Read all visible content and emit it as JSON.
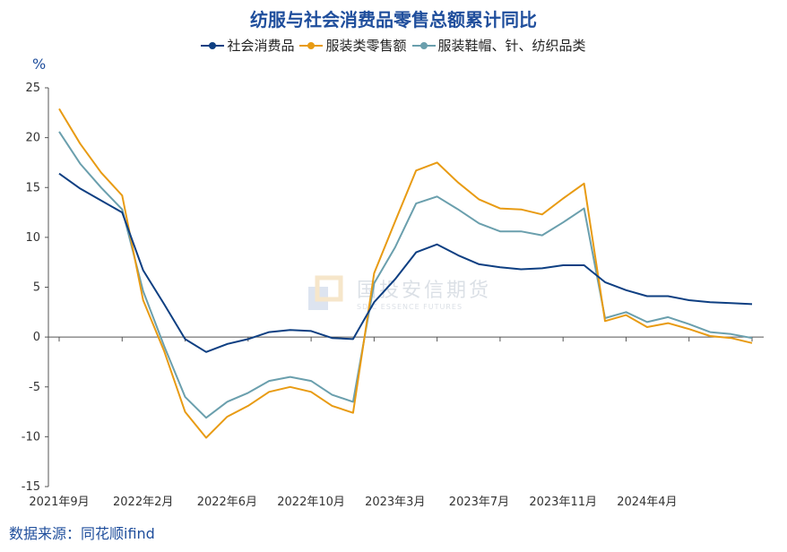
{
  "title": "纺服与社会消费品零售总额累计同比",
  "y_unit": "%",
  "source": "数据来源：同花顺ifind",
  "watermark": {
    "text_cn": "国投安信期货",
    "text_en": "SDIC ESSENCE FUTURES"
  },
  "chart_data": {
    "type": "line",
    "title": "纺服与社会消费品零售总额累计同比",
    "xlabel": "",
    "ylabel": "%",
    "ylim": [
      -15,
      25
    ],
    "yticks": [
      25,
      20,
      15,
      10,
      5,
      0,
      -5,
      -10,
      -15
    ],
    "grid": false,
    "legend_position": "top-center",
    "x": [
      "2021年9月",
      "2021年10月",
      "2021年11月",
      "2021年12月",
      "2022年2月",
      "2022年3月",
      "2022年4月",
      "2022年5月",
      "2022年6月",
      "2022年7月",
      "2022年8月",
      "2022年9月",
      "2022年10月",
      "2022年11月",
      "2022年12月",
      "2023年2月",
      "2023年3月",
      "2023年4月",
      "2023年5月",
      "2023年6月",
      "2023年7月",
      "2023年8月",
      "2023年9月",
      "2023年10月",
      "2023年11月",
      "2023年12月",
      "2024年2月",
      "2024年3月",
      "2024年4月",
      "2024年5月",
      "2024年6月",
      "2024年7月",
      "2024年8月",
      "2024年9月"
    ],
    "x_tick_labels": [
      "2021年9月",
      "2022年2月",
      "2022年6月",
      "2022年10月",
      "2023年3月",
      "2023年7月",
      "2023年11月",
      "2024年4月"
    ],
    "series": [
      {
        "name": "社会消费品",
        "color": "#0e3f82",
        "values": [
          16.4,
          14.9,
          13.7,
          12.5,
          6.7,
          3.3,
          -0.2,
          -1.5,
          -0.7,
          -0.2,
          0.5,
          0.7,
          0.6,
          -0.1,
          -0.2,
          3.5,
          5.8,
          8.5,
          9.3,
          8.2,
          7.3,
          7.0,
          6.8,
          6.9,
          7.2,
          7.2,
          5.5,
          4.7,
          4.1,
          4.1,
          3.7,
          3.5,
          3.4,
          3.3
        ]
      },
      {
        "name": "服装类零售额",
        "color": "#e89b13",
        "values": [
          22.9,
          19.4,
          16.5,
          14.2,
          3.7,
          -1.4,
          -7.5,
          -10.1,
          -8.0,
          -6.9,
          -5.5,
          -5.0,
          -5.5,
          -6.9,
          -7.6,
          6.4,
          11.6,
          16.7,
          17.5,
          15.5,
          13.8,
          12.9,
          12.8,
          12.3,
          13.9,
          15.4,
          1.6,
          2.2,
          1.0,
          1.4,
          0.8,
          0.1,
          -0.1,
          -0.6
        ]
      },
      {
        "name": "服装鞋帽、针、纺织品类",
        "color": "#6a9fad",
        "values": [
          20.6,
          17.4,
          15.0,
          12.8,
          4.6,
          -0.9,
          -6.0,
          -8.1,
          -6.5,
          -5.6,
          -4.4,
          -4.0,
          -4.4,
          -5.8,
          -6.5,
          5.4,
          9.0,
          13.4,
          14.1,
          12.8,
          11.4,
          10.6,
          10.6,
          10.2,
          11.5,
          12.9,
          1.9,
          2.5,
          1.5,
          2.0,
          1.3,
          0.5,
          0.3,
          -0.1
        ]
      }
    ]
  }
}
